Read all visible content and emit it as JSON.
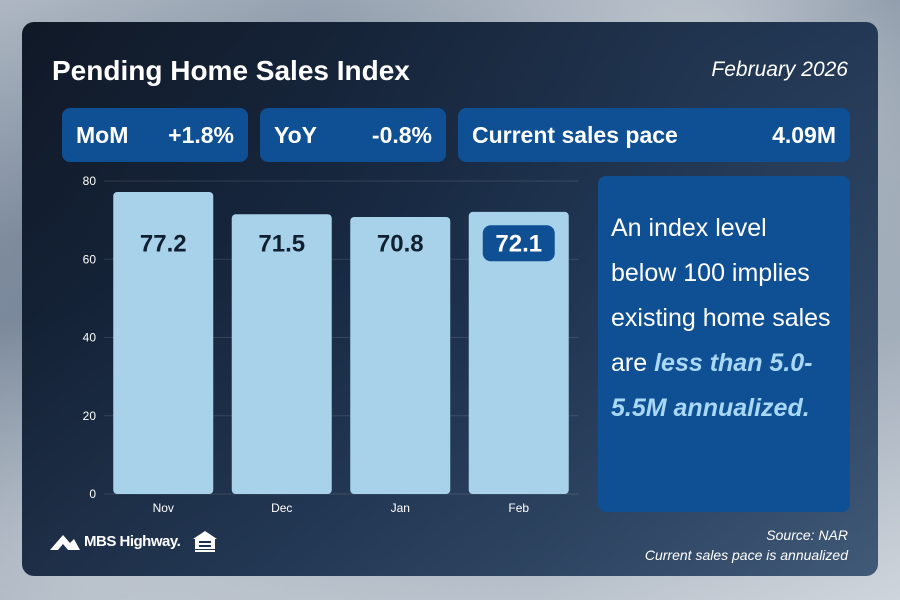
{
  "header": {
    "title": "Pending Home Sales Index",
    "date": "February 2026"
  },
  "stats": {
    "mom_label": "MoM",
    "mom_value": "+1.8%",
    "yoy_label": "YoY",
    "yoy_value": "-0.8%",
    "pace_label": "Current sales pace",
    "pace_value": "4.09M"
  },
  "chart_data": {
    "type": "bar",
    "categories": [
      "Nov",
      "Dec",
      "Jan",
      "Feb"
    ],
    "values": [
      77.2,
      71.5,
      70.8,
      72.1
    ],
    "value_labels": [
      "77.2",
      "71.5",
      "70.8",
      "72.1"
    ],
    "highlight_index": 3,
    "ylim": [
      0,
      80
    ],
    "yticks": [
      0,
      20,
      40,
      60,
      80
    ],
    "grid": true,
    "bar_color": "#a7d2ea",
    "highlight_label_bg": "#0f4f93"
  },
  "note": {
    "text_plain": "An index level below 100 implies existing home sales are ",
    "text_emphasis": "less than 5.0-5.5M annualized."
  },
  "footer": {
    "logo_text": "MBS Highway.",
    "source_line1": "Source: NAR",
    "source_line2": "Current sales pace is annualized"
  },
  "colors": {
    "accent": "#0f4f93",
    "card_bg": "#0b1626",
    "emphasis": "#a8d8f5"
  },
  "icons": [
    "mbs-highway-logo-icon",
    "equal-housing-opportunity-icon"
  ]
}
